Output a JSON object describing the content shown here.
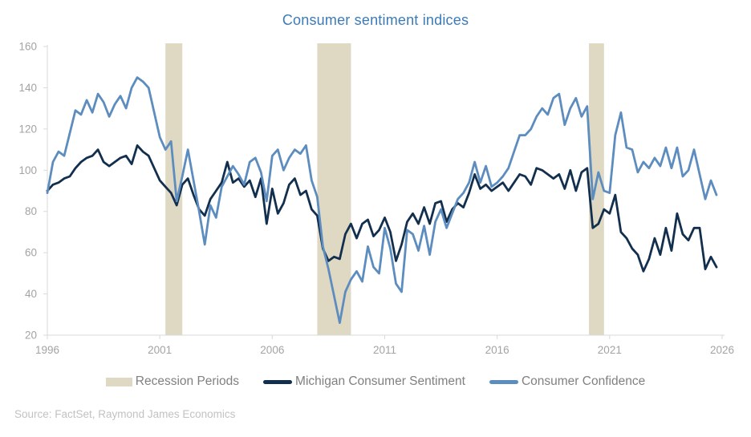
{
  "title": "Consumer sentiment indices",
  "source": "Source: FactSet, Raymond James Economics",
  "colors": {
    "title": "#3B7BB8",
    "michigan": "#122F4E",
    "confidence": "#5D8CBF",
    "recession_band": "#DFD9C4",
    "axis_line": "#D9D9D9",
    "tick_label": "#A3A3A3",
    "legend_text": "#808080",
    "source_text": "#C2C2C2"
  },
  "legend": [
    {
      "label": "Recession Periods",
      "type": "band",
      "color_key": "recession_band"
    },
    {
      "label": "Michigan Consumer Sentiment",
      "type": "line",
      "color_key": "michigan"
    },
    {
      "label": "Consumer Confidence",
      "type": "line",
      "color_key": "confidence"
    }
  ],
  "chart_data": {
    "type": "line",
    "title": "Consumer sentiment indices",
    "xlabel": "",
    "ylabel": "",
    "xlim": [
      1996,
      2026
    ],
    "ylim": [
      20,
      160
    ],
    "x_ticks": [
      1996,
      2001,
      2006,
      2011,
      2016,
      2021,
      2026
    ],
    "y_ticks": [
      20,
      40,
      60,
      80,
      100,
      120,
      140,
      160
    ],
    "grid": false,
    "legend_position": "bottom",
    "x_start": 1996.0,
    "x_step": 0.25,
    "recession_bands": [
      [
        2001.25,
        2002.0
      ],
      [
        2008.0,
        2009.5
      ],
      [
        2020.08,
        2020.75
      ]
    ],
    "series": [
      {
        "name": "Michigan Consumer Sentiment",
        "color_key": "michigan",
        "values": [
          90,
          93,
          94,
          96,
          97,
          101,
          104,
          106,
          107,
          110,
          104,
          102,
          104,
          106,
          107,
          103,
          112,
          109,
          107,
          101,
          95,
          92,
          89,
          83,
          93,
          96,
          88,
          81,
          78,
          86,
          90,
          94,
          104,
          94,
          96,
          92,
          95,
          87,
          96,
          74,
          91,
          79,
          84,
          93,
          96,
          88,
          90,
          81,
          78,
          62,
          56,
          58,
          57,
          69,
          74,
          67,
          74,
          76,
          68,
          71,
          77,
          70,
          56,
          64,
          75,
          79,
          74,
          82,
          74,
          84,
          85,
          75,
          81,
          84,
          82,
          89,
          98,
          91,
          93,
          90,
          92,
          94,
          90,
          94,
          98,
          97,
          93,
          101,
          100,
          98,
          96,
          98,
          91,
          100,
          90,
          99,
          101,
          72,
          74,
          81,
          79,
          88,
          70,
          67,
          62,
          59,
          51,
          57,
          67,
          59,
          72,
          61,
          79,
          69,
          66,
          72,
          72,
          52,
          58,
          53
        ]
      },
      {
        "name": "Consumer Confidence",
        "color_key": "confidence",
        "values": [
          89,
          104,
          109,
          107,
          118,
          129,
          127,
          134,
          128,
          137,
          133,
          126,
          132,
          136,
          130,
          140,
          145,
          143,
          140,
          128,
          116,
          110,
          114,
          85,
          97,
          110,
          95,
          80,
          64,
          83,
          77,
          92,
          97,
          102,
          98,
          93,
          104,
          106,
          99,
          85,
          107,
          110,
          100,
          106,
          110,
          108,
          112,
          95,
          87,
          63,
          52,
          39,
          26,
          41,
          47,
          51,
          46,
          63,
          53,
          50,
          72,
          62,
          45,
          41,
          71,
          69,
          61,
          73,
          59,
          75,
          81,
          72,
          79,
          86,
          89,
          94,
          104,
          94,
          102,
          92,
          94,
          97,
          101,
          109,
          117,
          117,
          120,
          126,
          130,
          127,
          135,
          137,
          122,
          130,
          135,
          126,
          131,
          86,
          99,
          90,
          89,
          117,
          128,
          111,
          110,
          99,
          104,
          101,
          106,
          102,
          111,
          101,
          111,
          97,
          100,
          110,
          98,
          86,
          95,
          88
        ]
      }
    ]
  }
}
